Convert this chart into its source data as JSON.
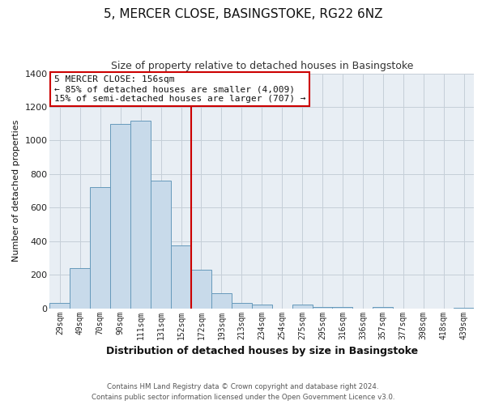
{
  "title": "5, MERCER CLOSE, BASINGSTOKE, RG22 6NZ",
  "subtitle": "Size of property relative to detached houses in Basingstoke",
  "xlabel": "Distribution of detached houses by size in Basingstoke",
  "ylabel": "Number of detached properties",
  "bar_labels": [
    "29sqm",
    "49sqm",
    "70sqm",
    "90sqm",
    "111sqm",
    "131sqm",
    "152sqm",
    "172sqm",
    "193sqm",
    "213sqm",
    "234sqm",
    "254sqm",
    "275sqm",
    "295sqm",
    "316sqm",
    "336sqm",
    "357sqm",
    "377sqm",
    "398sqm",
    "418sqm",
    "439sqm"
  ],
  "bar_values": [
    30,
    240,
    720,
    1100,
    1120,
    760,
    375,
    230,
    90,
    30,
    20,
    0,
    20,
    10,
    10,
    0,
    10,
    0,
    0,
    0,
    5
  ],
  "bar_color": "#c8daea",
  "bar_edge_color": "#6699bb",
  "ylim": [
    0,
    1400
  ],
  "yticks": [
    0,
    200,
    400,
    600,
    800,
    1000,
    1200,
    1400
  ],
  "vline_color": "#cc0000",
  "annotation_title": "5 MERCER CLOSE: 156sqm",
  "annotation_line1": "← 85% of detached houses are smaller (4,009)",
  "annotation_line2": "15% of semi-detached houses are larger (707) →",
  "annotation_box_color": "#ffffff",
  "annotation_box_edge": "#cc0000",
  "footer_line1": "Contains HM Land Registry data © Crown copyright and database right 2024.",
  "footer_line2": "Contains public sector information licensed under the Open Government Licence v3.0.",
  "fig_bg_color": "#ffffff",
  "plot_bg_color": "#e8eef4",
  "grid_color": "#c5cfd8",
  "title_fontsize": 11,
  "subtitle_fontsize": 9,
  "ylabel_fontsize": 8,
  "xlabel_fontsize": 9
}
